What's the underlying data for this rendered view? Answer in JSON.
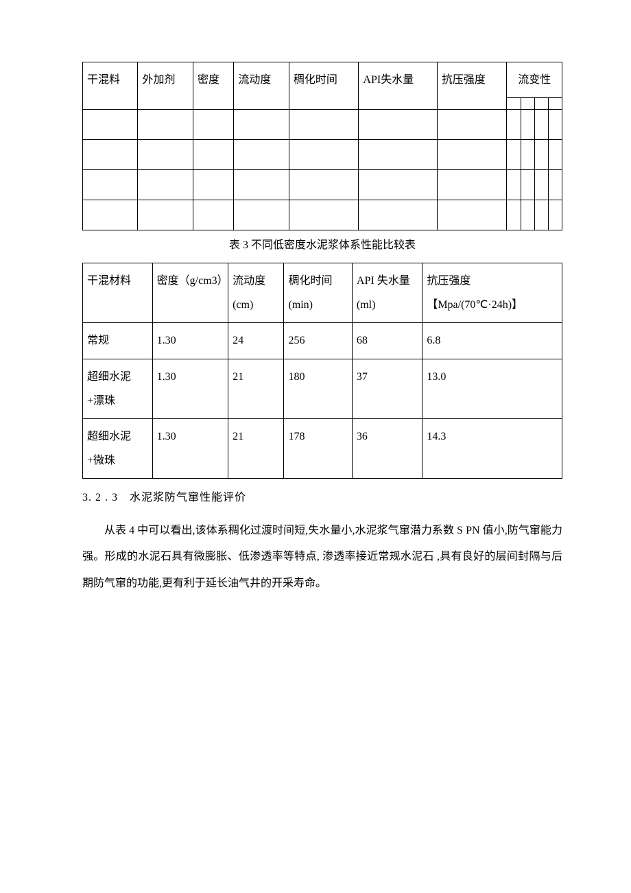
{
  "table1": {
    "headers": {
      "col1": "干混料",
      "col2": "外加剂",
      "col3": "密度",
      "col4": "流动度",
      "col5": "稠化时间",
      "col6": "API失水量",
      "col7": "抗压强度",
      "rheology": "流变性"
    }
  },
  "caption1": "表 3 不同低密度水泥浆体系性能比较表",
  "table2": {
    "headers": {
      "col1": "干混材料",
      "col2": "密度（g/cm3）",
      "col3": "流动度(cm)",
      "col4": "稠化时间(min)",
      "col5": "API 失水量(ml)",
      "col6": "抗压强度【Mpa/(70℃·24h)】"
    },
    "rows": [
      {
        "c1": "常规",
        "c2": "1.30",
        "c3": "24",
        "c4": "256",
        "c5": "68",
        "c6": "6.8"
      },
      {
        "c1": "超细水泥+漂珠",
        "c2": "1.30",
        "c3": "21",
        "c4": "180",
        "c5": "37",
        "c6": "13.0"
      },
      {
        "c1": "超细水泥+微珠",
        "c2": "1.30",
        "c3": "21",
        "c4": "178",
        "c5": "36",
        "c6": "14.3"
      }
    ]
  },
  "section_title": "3. 2 . 3　水泥浆防气窜性能评价",
  "body_paragraph": "从表 4 中可以看出,该体系稠化过渡时间短,失水量小,水泥浆气窜潜力系数 S PN 值小,防气窜能力强。形成的水泥石具有微膨胀、低渗透率等特点, 渗透率接近常规水泥石 ,具有良好的层间封隔与后期防气窜的功能,更有利于延长油气井的开采寿命。"
}
